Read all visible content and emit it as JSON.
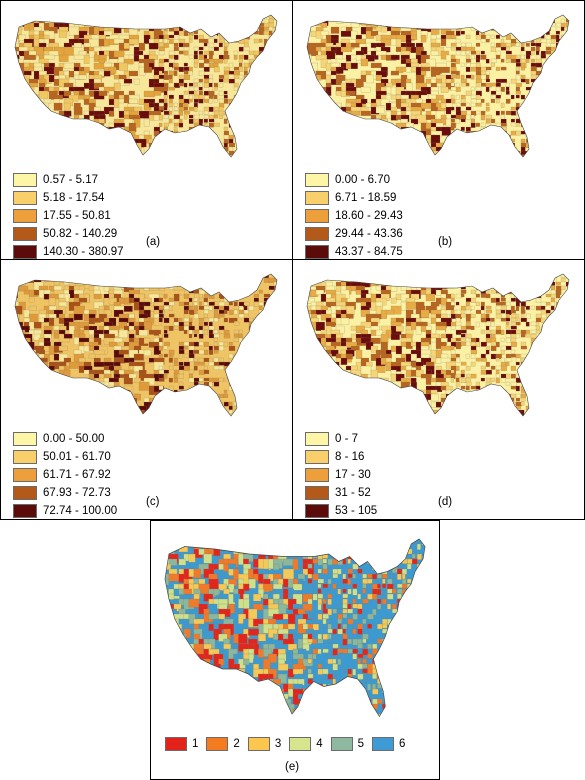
{
  "panels": [
    {
      "id": "a",
      "label": "(a)",
      "base_color": "#f7e79a",
      "county_colors": [
        "#f7e79a",
        "#f1c761",
        "#e3a43c",
        "#b8651f",
        "#6b0d0d"
      ],
      "legend": [
        {
          "label": "0.57 - 5.17",
          "color": "#fdf6a6"
        },
        {
          "label": "5.18 - 17.54",
          "color": "#f8cf6a"
        },
        {
          "label": "17.55 - 50.81",
          "color": "#ec9f3a"
        },
        {
          "label": "50.82 - 140.29",
          "color": "#b35a1a"
        },
        {
          "label": "140.30 - 380.97",
          "color": "#5c0b0b"
        }
      ]
    },
    {
      "id": "b",
      "label": "(b)",
      "base_color": "#fbf1a4",
      "county_colors": [
        "#fbf1a4",
        "#f5d577",
        "#e8ac47",
        "#b8651f",
        "#6b0d0d"
      ],
      "legend": [
        {
          "label": "0.00 - 6.70",
          "color": "#fdf6a6"
        },
        {
          "label": "6.71 - 18.59",
          "color": "#f8cf6a"
        },
        {
          "label": "18.60 - 29.43",
          "color": "#ec9f3a"
        },
        {
          "label": "29.44 - 43.36",
          "color": "#b35a1a"
        },
        {
          "label": "43.37 - 84.75",
          "color": "#5c0b0b"
        }
      ]
    },
    {
      "id": "c",
      "label": "(c)",
      "base_color": "#efc465",
      "county_colors": [
        "#f7e79a",
        "#efc465",
        "#df9b3b",
        "#a85218",
        "#5c0b0b"
      ],
      "legend": [
        {
          "label": "0.00 - 50.00",
          "color": "#fdf6a6"
        },
        {
          "label": "50.01 - 61.70",
          "color": "#f8cf6a"
        },
        {
          "label": "61.71 - 67.92",
          "color": "#ec9f3a"
        },
        {
          "label": "67.93 - 72.73",
          "color": "#b35a1a"
        },
        {
          "label": "72.74 - 100.00",
          "color": "#5c0b0b"
        }
      ]
    },
    {
      "id": "d",
      "label": "(d)",
      "base_color": "#fbf1a4",
      "county_colors": [
        "#fbf1a4",
        "#f5d577",
        "#e8ac47",
        "#b8651f",
        "#6b0d0d"
      ],
      "legend": [
        {
          "label": "0 - 7",
          "color": "#fdf6a6"
        },
        {
          "label": "8 - 16",
          "color": "#f8cf6a"
        },
        {
          "label": "17 - 30",
          "color": "#ec9f3a"
        },
        {
          "label": "31 - 52",
          "color": "#b35a1a"
        },
        {
          "label": "53 - 105",
          "color": "#5c0b0b"
        }
      ]
    },
    {
      "id": "e",
      "label": "(e)",
      "base_color": "#3d9ad1",
      "county_colors": [
        "#3d9ad1",
        "#8ab79e",
        "#f3c95a",
        "#f07a2b",
        "#e0261f",
        "#cfe08c"
      ],
      "legend": [
        {
          "label": "1",
          "color": "#e3221c"
        },
        {
          "label": "2",
          "color": "#f47b20"
        },
        {
          "label": "3",
          "color": "#fbc74f"
        },
        {
          "label": "4",
          "color": "#d7e58f"
        },
        {
          "label": "5",
          "color": "#8fb8a0"
        },
        {
          "label": "6",
          "color": "#3f9bd4"
        }
      ]
    }
  ]
}
